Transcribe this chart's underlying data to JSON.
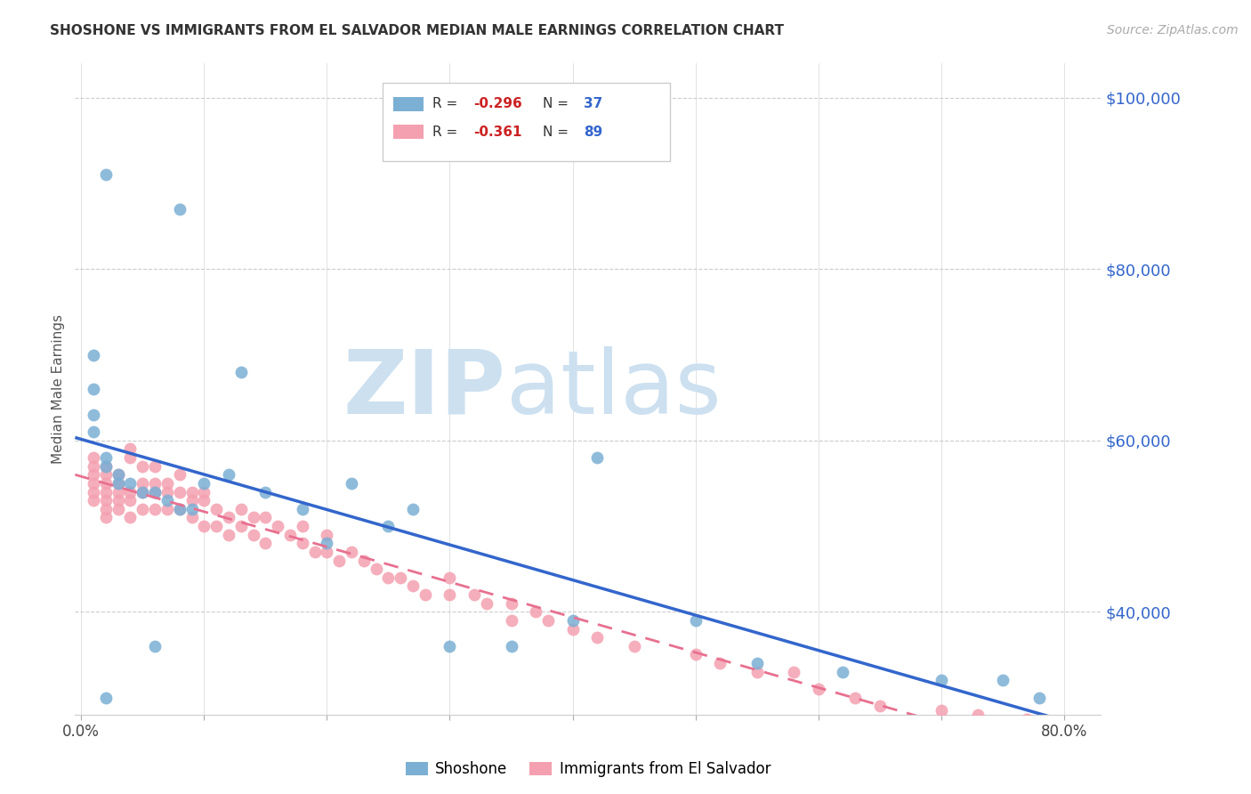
{
  "title": "SHOSHONE VS IMMIGRANTS FROM EL SALVADOR MEDIAN MALE EARNINGS CORRELATION CHART",
  "source": "Source: ZipAtlas.com",
  "ylabel": "Median Male Earnings",
  "ytick_labels": [
    "$40,000",
    "$60,000",
    "$80,000",
    "$100,000"
  ],
  "ytick_values": [
    40000,
    60000,
    80000,
    100000
  ],
  "ymin": 28000,
  "ymax": 104000,
  "xmin": -0.005,
  "xmax": 0.83,
  "blue_color": "#7bafd4",
  "pink_color": "#f4a0b0",
  "blue_line_color": "#3366cc",
  "pink_line_color": "#e87090",
  "watermark_color": "#cce0f0",
  "blue_scatter_x": [
    0.02,
    0.08,
    0.13,
    0.01,
    0.01,
    0.01,
    0.01,
    0.02,
    0.02,
    0.03,
    0.03,
    0.04,
    0.05,
    0.06,
    0.07,
    0.08,
    0.09,
    0.1,
    0.12,
    0.15,
    0.18,
    0.2,
    0.22,
    0.25,
    0.27,
    0.3,
    0.35,
    0.4,
    0.42,
    0.5,
    0.55,
    0.62,
    0.7,
    0.75,
    0.78,
    0.02,
    0.06
  ],
  "blue_scatter_y": [
    91000,
    87000,
    68000,
    70000,
    66000,
    63000,
    61000,
    58000,
    57000,
    56000,
    55000,
    55000,
    54000,
    54000,
    53000,
    52000,
    52000,
    55000,
    56000,
    54000,
    52000,
    48000,
    55000,
    50000,
    52000,
    36000,
    36000,
    39000,
    58000,
    39000,
    34000,
    33000,
    32000,
    32000,
    30000,
    30000,
    36000
  ],
  "pink_scatter_x": [
    0.01,
    0.01,
    0.01,
    0.01,
    0.01,
    0.01,
    0.02,
    0.02,
    0.02,
    0.02,
    0.02,
    0.02,
    0.02,
    0.03,
    0.03,
    0.03,
    0.03,
    0.03,
    0.04,
    0.04,
    0.04,
    0.04,
    0.04,
    0.05,
    0.05,
    0.05,
    0.05,
    0.06,
    0.06,
    0.06,
    0.06,
    0.07,
    0.07,
    0.07,
    0.08,
    0.08,
    0.08,
    0.09,
    0.09,
    0.09,
    0.1,
    0.1,
    0.1,
    0.11,
    0.11,
    0.12,
    0.12,
    0.13,
    0.13,
    0.14,
    0.14,
    0.15,
    0.15,
    0.16,
    0.17,
    0.18,
    0.18,
    0.19,
    0.2,
    0.2,
    0.21,
    0.22,
    0.23,
    0.24,
    0.25,
    0.26,
    0.27,
    0.28,
    0.3,
    0.3,
    0.32,
    0.33,
    0.35,
    0.35,
    0.37,
    0.38,
    0.4,
    0.42,
    0.45,
    0.5,
    0.52,
    0.55,
    0.58,
    0.6,
    0.63,
    0.65,
    0.7,
    0.73,
    0.77
  ],
  "pink_scatter_y": [
    58000,
    57000,
    56000,
    55000,
    54000,
    53000,
    57000,
    56000,
    55000,
    54000,
    53000,
    52000,
    51000,
    56000,
    55000,
    54000,
    53000,
    52000,
    59000,
    58000,
    54000,
    53000,
    51000,
    57000,
    55000,
    54000,
    52000,
    57000,
    55000,
    54000,
    52000,
    55000,
    54000,
    52000,
    56000,
    54000,
    52000,
    54000,
    53000,
    51000,
    54000,
    53000,
    50000,
    52000,
    50000,
    51000,
    49000,
    52000,
    50000,
    51000,
    49000,
    51000,
    48000,
    50000,
    49000,
    50000,
    48000,
    47000,
    49000,
    47000,
    46000,
    47000,
    46000,
    45000,
    44000,
    44000,
    43000,
    42000,
    44000,
    42000,
    42000,
    41000,
    41000,
    39000,
    40000,
    39000,
    38000,
    37000,
    36000,
    35000,
    34000,
    33000,
    33000,
    31000,
    30000,
    29000,
    28500,
    28000,
    27500
  ]
}
